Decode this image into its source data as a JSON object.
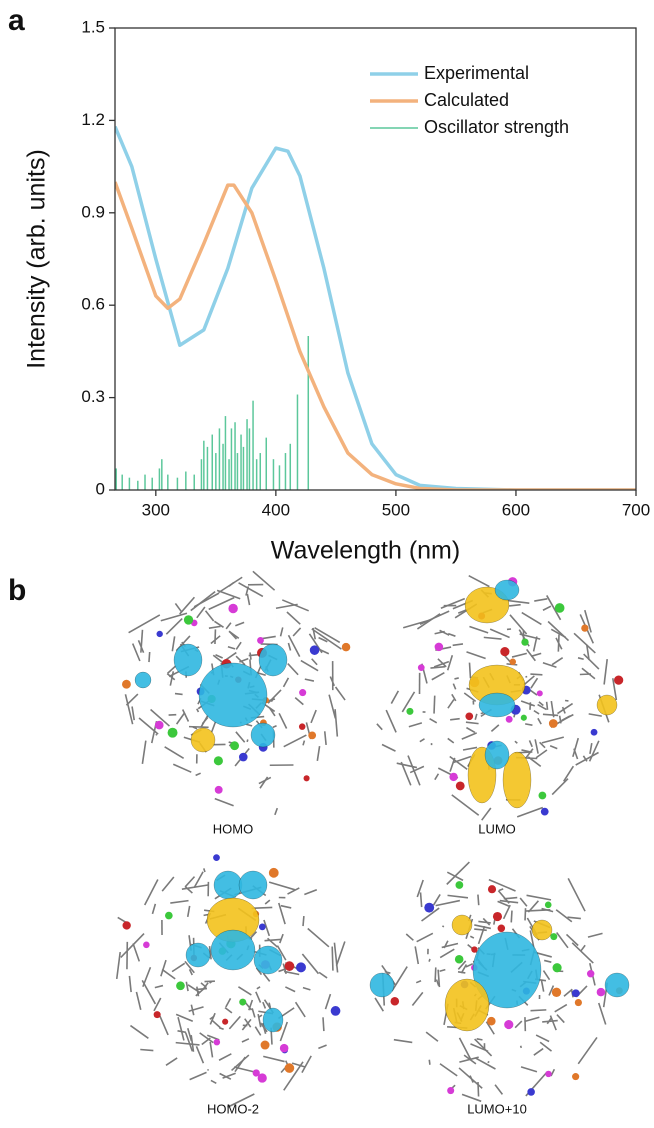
{
  "panel_labels": [
    "a",
    "b"
  ],
  "chart_data": {
    "type": "line",
    "xlabel": "Wavelength (nm)",
    "ylabel": "Intensity (arb. units)",
    "xlim": [
      266,
      700
    ],
    "xticks": [
      300,
      400,
      500,
      600,
      700
    ],
    "ylim": [
      0,
      1.5
    ],
    "yticks": [
      0,
      0.3,
      0.6,
      0.9,
      1.2,
      1.5
    ],
    "legend": "upper right",
    "series": [
      {
        "name": "Experimental",
        "color": "#8fd0e8",
        "style": "line",
        "x": [
          266,
          280,
          300,
          320,
          340,
          360,
          380,
          400,
          410,
          420,
          440,
          460,
          480,
          500,
          520,
          550,
          600,
          700
        ],
        "values": [
          1.18,
          1.05,
          0.75,
          0.47,
          0.52,
          0.72,
          0.98,
          1.11,
          1.1,
          1.02,
          0.72,
          0.38,
          0.15,
          0.05,
          0.015,
          0.005,
          0,
          0
        ]
      },
      {
        "name": "Calculated",
        "color": "#f3b27d",
        "style": "line",
        "x": [
          266,
          280,
          300,
          310,
          320,
          340,
          360,
          365,
          380,
          400,
          420,
          440,
          460,
          480,
          500,
          520,
          550,
          700
        ],
        "values": [
          1.0,
          0.85,
          0.63,
          0.59,
          0.62,
          0.8,
          0.99,
          0.99,
          0.9,
          0.68,
          0.45,
          0.27,
          0.12,
          0.05,
          0.02,
          0.005,
          0,
          0
        ]
      },
      {
        "name": "Oscillator strength",
        "color": "#5cc79b",
        "style": "sticks",
        "x": [
          267,
          272,
          278,
          285,
          291,
          297,
          303,
          305,
          310,
          318,
          325,
          332,
          338,
          340,
          343,
          347,
          350,
          353,
          356,
          358,
          361,
          363,
          366,
          368,
          371,
          373,
          376,
          378,
          381,
          384,
          387,
          392,
          398,
          403,
          408,
          412,
          418,
          427
        ],
        "values": [
          0.07,
          0.05,
          0.04,
          0.03,
          0.05,
          0.04,
          0.07,
          0.1,
          0.05,
          0.04,
          0.06,
          0.05,
          0.1,
          0.16,
          0.14,
          0.18,
          0.12,
          0.2,
          0.15,
          0.24,
          0.1,
          0.2,
          0.22,
          0.12,
          0.18,
          0.14,
          0.23,
          0.2,
          0.29,
          0.1,
          0.12,
          0.17,
          0.1,
          0.08,
          0.12,
          0.15,
          0.31,
          0.5
        ]
      }
    ]
  },
  "orbitals": [
    {
      "label": "HOMO"
    },
    {
      "label": "LUMO"
    },
    {
      "label": "HOMO-2"
    },
    {
      "label": "LUMO+10"
    }
  ]
}
